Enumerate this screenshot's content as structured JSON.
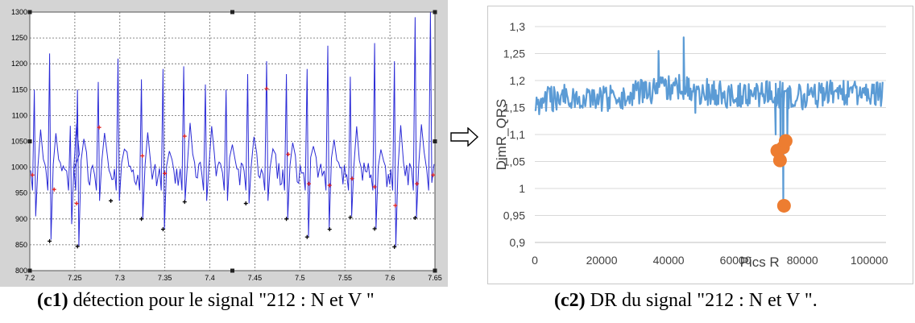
{
  "chart_data": [
    {
      "type": "line",
      "title": "",
      "xlabel": "",
      "ylabel": "",
      "xlim": [
        7.2,
        7.65
      ],
      "ylim": [
        800,
        1300
      ],
      "x_ticks": [
        "7.2",
        "7.25",
        "7.3",
        "7.35",
        "7.4",
        "7.45",
        "7.5",
        "7.55",
        "7.6",
        "7.65"
      ],
      "y_ticks": [
        "800",
        "850",
        "900",
        "950",
        "1000",
        "1050",
        "1100",
        "1150",
        "1200",
        "1250",
        "1300"
      ],
      "grid": true,
      "colors": {
        "signal": "#2b2bd6",
        "peak_marker": "#e02020",
        "trough_marker": "#000000"
      },
      "beats": [
        {
          "t": 7.205,
          "r": 1150,
          "s": 905
        },
        {
          "t": 7.222,
          "r": 1220,
          "s": 860
        },
        {
          "t": 7.245,
          "r": 1080,
          "s": 890
        },
        {
          "t": 7.253,
          "r": 1150,
          "s": 848
        },
        {
          "t": 7.276,
          "r": 1165,
          "s": 935
        },
        {
          "t": 7.298,
          "r": 1210,
          "s": 935
        },
        {
          "t": 7.324,
          "r": 1170,
          "s": 900
        },
        {
          "t": 7.348,
          "r": 1190,
          "s": 880
        },
        {
          "t": 7.371,
          "r": 1195,
          "s": 935
        },
        {
          "t": 7.395,
          "r": 1160,
          "s": 935
        },
        {
          "t": 7.418,
          "r": 1150,
          "s": 935
        },
        {
          "t": 7.442,
          "r": 1180,
          "s": 930
        },
        {
          "t": 7.463,
          "r": 1205,
          "s": 935
        },
        {
          "t": 7.485,
          "r": 1180,
          "s": 900
        },
        {
          "t": 7.508,
          "r": 1190,
          "s": 865
        },
        {
          "t": 7.531,
          "r": 1235,
          "s": 880
        },
        {
          "t": 7.556,
          "r": 1175,
          "s": 905
        },
        {
          "t": 7.583,
          "r": 1240,
          "s": 880
        },
        {
          "t": 7.605,
          "r": 1205,
          "s": 847
        },
        {
          "t": 7.628,
          "r": 1290,
          "s": 902
        },
        {
          "t": 7.645,
          "r": 1300,
          "s": 970
        }
      ],
      "peak_markers": [
        {
          "x": 7.203,
          "y": 985
        },
        {
          "x": 7.227,
          "y": 957
        },
        {
          "x": 7.252,
          "y": 930
        },
        {
          "x": 7.277,
          "y": 1077
        },
        {
          "x": 7.325,
          "y": 1022
        },
        {
          "x": 7.35,
          "y": 988
        },
        {
          "x": 7.372,
          "y": 1060
        },
        {
          "x": 7.463,
          "y": 1152
        },
        {
          "x": 7.487,
          "y": 1025
        },
        {
          "x": 7.51,
          "y": 968
        },
        {
          "x": 7.533,
          "y": 965
        },
        {
          "x": 7.558,
          "y": 978
        },
        {
          "x": 7.583,
          "y": 962
        },
        {
          "x": 7.606,
          "y": 926
        },
        {
          "x": 7.63,
          "y": 968
        },
        {
          "x": 7.648,
          "y": 985
        }
      ],
      "trough_markers": [
        {
          "x": 7.222,
          "y": 857
        },
        {
          "x": 7.253,
          "y": 847
        },
        {
          "x": 7.29,
          "y": 935
        },
        {
          "x": 7.324,
          "y": 900
        },
        {
          "x": 7.348,
          "y": 880
        },
        {
          "x": 7.372,
          "y": 933
        },
        {
          "x": 7.44,
          "y": 930
        },
        {
          "x": 7.485,
          "y": 900
        },
        {
          "x": 7.508,
          "y": 865
        },
        {
          "x": 7.533,
          "y": 880
        },
        {
          "x": 7.556,
          "y": 903
        },
        {
          "x": 7.583,
          "y": 881
        },
        {
          "x": 7.605,
          "y": 846
        },
        {
          "x": 7.628,
          "y": 902
        }
      ]
    },
    {
      "type": "line",
      "title": "",
      "xlabel": "Pics R",
      "ylabel": "DimR_QRS",
      "xlim": [
        0,
        105000
      ],
      "ylim": [
        0.9,
        1.3
      ],
      "x_ticks": [
        "0",
        "20000",
        "40000",
        "60000",
        "80000",
        "100000"
      ],
      "y_ticks": [
        "0,9",
        "0,95",
        "1",
        "1,05",
        "1,1",
        "1,15",
        "1,2",
        "1,25",
        "1,3"
      ],
      "grid": true,
      "colors": {
        "line": "#5b9bd5",
        "points": "#ed7d31"
      },
      "line_seed": 0.17,
      "line_baseline": [
        {
          "x": 0,
          "y": 1.16
        },
        {
          "x": 10000,
          "y": 1.17
        },
        {
          "x": 20000,
          "y": 1.165
        },
        {
          "x": 30000,
          "y": 1.175
        },
        {
          "x": 40000,
          "y": 1.19
        },
        {
          "x": 50000,
          "y": 1.18
        },
        {
          "x": 60000,
          "y": 1.17
        },
        {
          "x": 70000,
          "y": 1.175
        },
        {
          "x": 80000,
          "y": 1.17
        },
        {
          "x": 90000,
          "y": 1.18
        },
        {
          "x": 104000,
          "y": 1.175
        }
      ],
      "line_features": [
        {
          "x": 37000,
          "y": 1.255
        },
        {
          "x": 44500,
          "y": 1.28
        },
        {
          "x": 48000,
          "y": 1.14
        },
        {
          "x": 72000,
          "y": 1.1
        },
        {
          "x": 73500,
          "y": 1.05
        },
        {
          "x": 74300,
          "y": 0.97
        },
        {
          "x": 75500,
          "y": 1.09
        }
      ],
      "points": [
        {
          "x": 72500,
          "y": 1.07
        },
        {
          "x": 73300,
          "y": 1.052
        },
        {
          "x": 74200,
          "y": 1.076
        },
        {
          "x": 75000,
          "y": 1.088
        },
        {
          "x": 74500,
          "y": 0.968
        }
      ]
    }
  ],
  "captions": {
    "c1_label": "(c1)",
    "c1_text": " détection pour le signal \"212 : N et V \"",
    "c2_label": "(c2)",
    "c2_text": " DR du signal \"212 : N et V \"."
  }
}
